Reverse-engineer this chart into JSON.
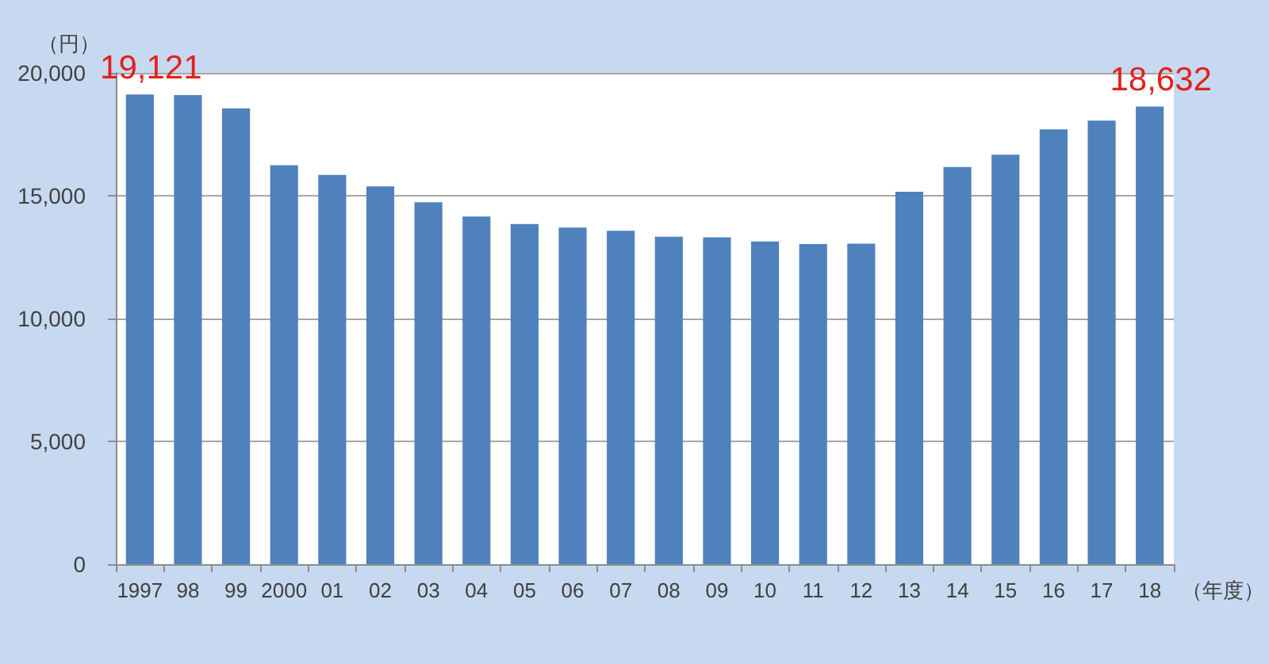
{
  "chart_data": {
    "type": "bar",
    "categories": [
      "1997",
      "98",
      "99",
      "2000",
      "01",
      "02",
      "03",
      "04",
      "05",
      "06",
      "07",
      "08",
      "09",
      "10",
      "11",
      "12",
      "13",
      "14",
      "15",
      "16",
      "17",
      "18"
    ],
    "values": [
      19121,
      19100,
      18560,
      16240,
      15850,
      15380,
      14730,
      14150,
      13850,
      13700,
      13570,
      13330,
      13310,
      13140,
      13030,
      13050,
      15160,
      16170,
      16670,
      17700,
      18060,
      18632
    ],
    "value_labels": [
      "19,121",
      null,
      null,
      null,
      null,
      null,
      null,
      null,
      null,
      null,
      null,
      null,
      null,
      null,
      null,
      null,
      null,
      null,
      null,
      null,
      null,
      "18,632"
    ],
    "color": "#4f81bd",
    "xlabel": "（年度）",
    "ylabel": "（円）",
    "ylim": [
      0,
      20000
    ],
    "yticks": [
      0,
      {
        "value": 5000,
        "label": "5,000"
      },
      {
        "value": 10000,
        "label": "10,000"
      },
      {
        "value": 15000,
        "label": "15,000"
      },
      {
        "value": 20000,
        "label": "20,000"
      }
    ],
    "grid": "y"
  }
}
